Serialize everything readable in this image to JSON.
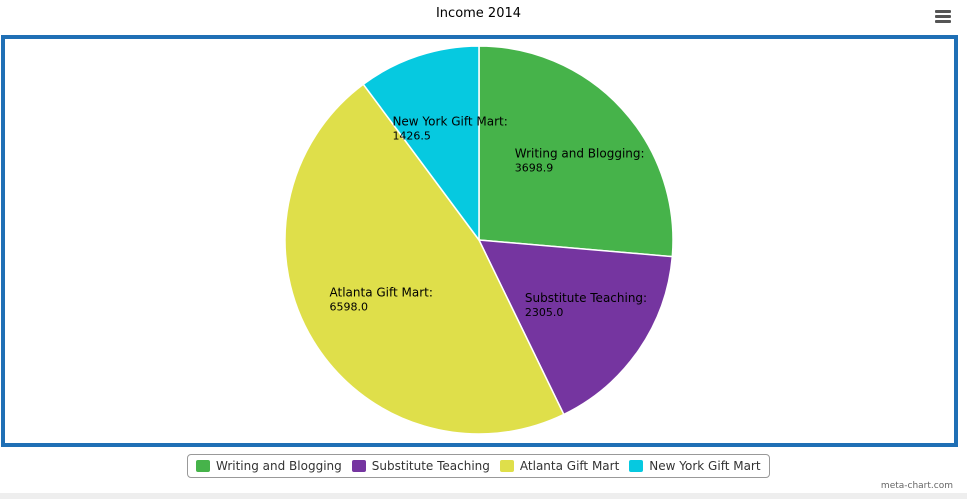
{
  "header": {
    "title": "Income 2014"
  },
  "menu": {
    "icon": "hamburger-menu-icon"
  },
  "chart_data": {
    "type": "pie",
    "title": "Income 2014",
    "categories": [
      "Writing and Blogging",
      "Substitute Teaching",
      "Atlanta Gift Mart",
      "New York Gift Mart"
    ],
    "values": [
      3698.9,
      2305.0,
      6598.0,
      1426.5
    ],
    "value_labels": [
      "3698.9",
      "2305.0",
      "6598.0",
      "1426.5"
    ],
    "colors": [
      "#46b34a",
      "#7535a0",
      "#dfdf4a",
      "#06c9e0"
    ],
    "legend_position": "bottom-center",
    "start_angle": "top",
    "direction": "clockwise"
  },
  "legend": {
    "items": [
      {
        "label": "Writing and Blogging",
        "color": "#46b34a"
      },
      {
        "label": "Substitute Teaching",
        "color": "#7535a0"
      },
      {
        "label": "Atlanta Gift Mart",
        "color": "#dfdf4a"
      },
      {
        "label": "New York Gift Mart",
        "color": "#06c9e0"
      }
    ]
  },
  "footer": {
    "credit": "meta-chart.com"
  }
}
